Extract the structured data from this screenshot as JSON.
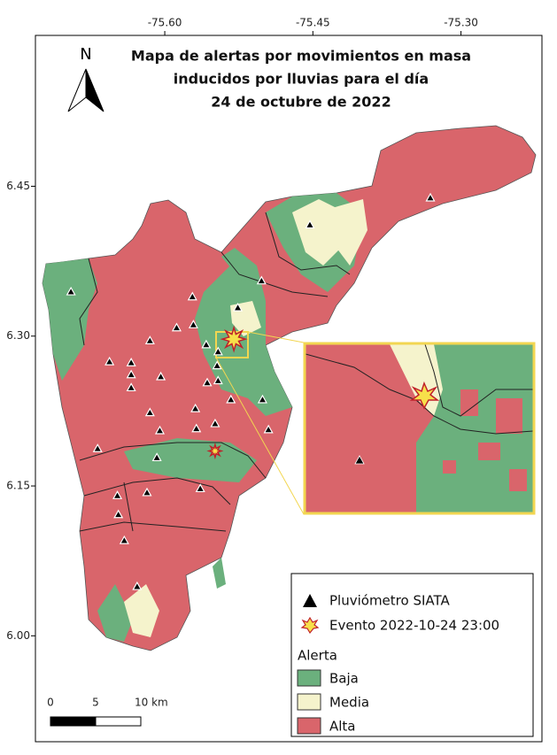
{
  "map": {
    "title": [
      "Mapa de alertas por movimientos en masa",
      "inducidos por lluvias para el día",
      "24 de octubre de 2022"
    ],
    "north": "N",
    "xlim": [
      -75.731,
      -75.218
    ],
    "ylim": [
      5.894,
      6.601
    ],
    "xticks": [
      {
        "value": -75.6,
        "label": "-75.60"
      },
      -75.45,
      {
        "value": -75.3,
        "label": "-75.30"
      }
    ],
    "yticks": [
      6.45,
      {
        "value": 6.3,
        "label": "6.30"
      },
      6.15,
      {
        "value": 6,
        "label": "6.00"
      }
    ],
    "stations": {
      "lon": [
        -75.331,
        -75.453,
        -75.502,
        -75.695,
        -75.572,
        -75.526,
        -75.588,
        -75.571,
        -75.615,
        -75.558,
        -75.546,
        -75.656,
        -75.634,
        -75.634,
        -75.547,
        -75.634,
        -75.604,
        -75.557,
        -75.546,
        -75.501,
        -75.533,
        -75.615,
        -75.569,
        -75.495,
        -75.605,
        -75.568,
        -75.549,
        -75.668,
        -75.608,
        -75.648,
        -75.618,
        -75.564,
        -75.647,
        -75.641,
        -75.628
      ],
      "lat": [
        6.438,
        6.411,
        6.355,
        6.344,
        6.339,
        6.328,
        6.308,
        6.311,
        6.295,
        6.291,
        6.284,
        6.274,
        6.273,
        6.261,
        6.27,
        6.248,
        6.259,
        6.253,
        6.255,
        6.236,
        6.236,
        6.223,
        6.227,
        6.206,
        6.205,
        6.207,
        6.212,
        6.187,
        6.178,
        6.14,
        6.143,
        6.147,
        6.121,
        6.095,
        6.049
      ]
    },
    "events": {
      "lon": [
        -75.53,
        -75.549
      ],
      "lat": [
        6.297,
        6.185
      ]
    },
    "legend": {
      "station": "Pluviómetro SIATA",
      "event": "Evento 2022-10-24 23:00",
      "alert_title": "Alerta",
      "classes": [
        {
          "name": "Baja",
          "color": "#6bb07d"
        },
        {
          "name": "Media",
          "color": "#f5f3cc"
        },
        {
          "name": "Alta",
          "color": "#d9656b"
        }
      ]
    },
    "scale": {
      "labels": [
        "0",
        "5",
        "10 km"
      ]
    }
  }
}
